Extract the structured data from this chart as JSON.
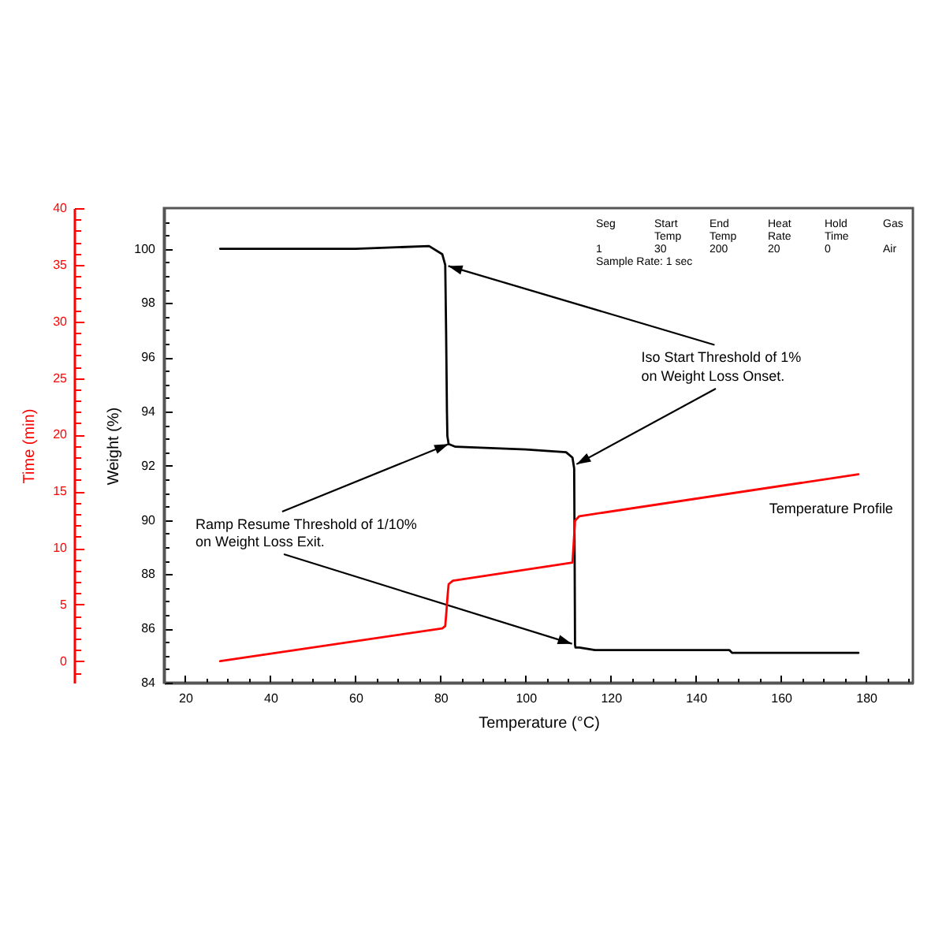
{
  "chart_data": {
    "type": "line",
    "xlabel": "Temperature (°C)",
    "ylabel": "Weight (%)",
    "y2label": "Time (min)",
    "series": [
      {
        "color": "#000000",
        "x": [
          28.2,
          60.0,
          77.3,
          80.4,
          81.1,
          81.3,
          81.5,
          81.6,
          81.9,
          83.5,
          100.0,
          109.5,
          111.0,
          111.4,
          111.5,
          111.6,
          111.7,
          112.6,
          116.3,
          147.9,
          148.5,
          178.2
        ],
        "values": [
          100.0,
          100.0,
          100.1,
          99.8,
          99.4,
          97.0,
          94.0,
          93.1,
          92.8,
          92.7,
          92.6,
          92.5,
          92.3,
          91.9,
          89.0,
          85.4,
          85.3,
          85.3,
          85.2,
          85.2,
          85.1,
          85.1
        ]
      },
      {
        "name": "Temperature Profile",
        "color": "#ff0000",
        "axis": "y2",
        "x": [
          28.2,
          80.4,
          81.1,
          81.4,
          81.7,
          81.9,
          82.9,
          111.0,
          111.3,
          111.6,
          112.6,
          178.2
        ],
        "values": [
          0.0,
          2.9,
          3.1,
          4.5,
          6.0,
          6.8,
          7.1,
          8.7,
          10.5,
          12.4,
          12.8,
          16.5
        ]
      }
    ],
    "xlim": [
      15,
      191
    ],
    "xticks": [
      20,
      {
        "value": 25,
        "label": null
      },
      {
        "value": 30,
        "label": null
      },
      {
        "value": 35,
        "label": null
      },
      40,
      {
        "value": 45,
        "label": null
      },
      {
        "value": 50,
        "label": null
      },
      {
        "value": 55,
        "label": null
      },
      60,
      {
        "value": 65,
        "label": null
      },
      {
        "value": 70,
        "label": null
      },
      {
        "value": 75,
        "label": null
      },
      80,
      {
        "value": 85,
        "label": null
      },
      {
        "value": 90,
        "label": null
      },
      {
        "value": 95,
        "label": null
      },
      100,
      {
        "value": 105,
        "label": null
      },
      {
        "value": 110,
        "label": null
      },
      {
        "value": 115,
        "label": null
      },
      120,
      {
        "value": 125,
        "label": null
      },
      {
        "value": 130,
        "label": null
      },
      {
        "value": 135,
        "label": null
      },
      140,
      {
        "value": 145,
        "label": null
      },
      {
        "value": 150,
        "label": null
      },
      {
        "value": 155,
        "label": null
      },
      160,
      {
        "value": 165,
        "label": null
      },
      {
        "value": 170,
        "label": null
      },
      {
        "value": 175,
        "label": null
      },
      180,
      {
        "value": 185,
        "label": null
      },
      {
        "value": 190,
        "label": null
      }
    ],
    "ylim": [
      84,
      101.5
    ],
    "yticks": [
      84,
      {
        "value": 84.5,
        "label": null
      },
      {
        "value": 85,
        "label": null
      },
      {
        "value": 85.5,
        "label": null
      },
      86,
      {
        "value": 86.5,
        "label": null
      },
      {
        "value": 87,
        "label": null
      },
      {
        "value": 87.5,
        "label": null
      },
      88,
      {
        "value": 88.5,
        "label": null
      },
      {
        "value": 89,
        "label": null
      },
      {
        "value": 89.5,
        "label": null
      },
      90,
      {
        "value": 90.5,
        "label": null
      },
      {
        "value": 91,
        "label": null
      },
      {
        "value": 91.5,
        "label": null
      },
      92,
      {
        "value": 92.5,
        "label": null
      },
      {
        "value": 93,
        "label": null
      },
      {
        "value": 93.5,
        "label": null
      },
      94,
      {
        "value": 94.5,
        "label": null
      },
      {
        "value": 95,
        "label": null
      },
      {
        "value": 95.5,
        "label": null
      },
      96,
      {
        "value": 96.5,
        "label": null
      },
      {
        "value": 97,
        "label": null
      },
      {
        "value": 97.5,
        "label": null
      },
      98,
      {
        "value": 98.5,
        "label": null
      },
      {
        "value": 99,
        "label": null
      },
      {
        "value": 99.5,
        "label": null
      },
      100,
      {
        "value": 100.5,
        "label": null
      },
      {
        "value": 101,
        "label": null
      }
    ],
    "y2lim": [
      -1.9,
      40
    ],
    "y2ticks": [
      {
        "value": -1,
        "label": null
      },
      0,
      {
        "value": 1,
        "label": null
      },
      {
        "value": 2,
        "label": null
      },
      {
        "value": 3,
        "label": null
      },
      {
        "value": 4,
        "label": null
      },
      5,
      {
        "value": 6,
        "label": null
      },
      {
        "value": 7,
        "label": null
      },
      {
        "value": 8,
        "label": null
      },
      {
        "value": 9,
        "label": null
      },
      10,
      {
        "value": 11,
        "label": null
      },
      {
        "value": 12,
        "label": null
      },
      {
        "value": 13,
        "label": null
      },
      {
        "value": 14,
        "label": null
      },
      15,
      {
        "value": 16,
        "label": null
      },
      {
        "value": 17,
        "label": null
      },
      {
        "value": 18,
        "label": null
      },
      {
        "value": 19,
        "label": null
      },
      20,
      {
        "value": 21,
        "label": null
      },
      {
        "value": 22,
        "label": null
      },
      {
        "value": 23,
        "label": null
      },
      {
        "value": 24,
        "label": null
      },
      25,
      {
        "value": 26,
        "label": null
      },
      {
        "value": 27,
        "label": null
      },
      {
        "value": 28,
        "label": null
      },
      {
        "value": 29,
        "label": null
      },
      30,
      {
        "value": 31,
        "label": null
      },
      {
        "value": 32,
        "label": null
      },
      {
        "value": 33,
        "label": null
      },
      {
        "value": 34,
        "label": null
      },
      35,
      {
        "value": 36,
        "label": null
      },
      {
        "value": 37,
        "label": null
      },
      {
        "value": 38,
        "label": null
      },
      {
        "value": 39,
        "label": null
      },
      40
    ],
    "annotations": [
      "Seg",
      "Start\nTemp",
      "End\nTemp",
      "Heat\nRate",
      "Hold\nTime",
      "Gas",
      "1",
      "30",
      "200",
      "20",
      "0",
      "Air",
      "Sample Rate: 1 sec",
      {
        "text": "Iso Start Threshold of 1%",
        "x": 81.1,
        "y": 99.4
      },
      {
        "text": "on Weight Loss Onset.",
        "x": 111.3,
        "y": 92.0
      },
      {
        "text": "Ramp Resume Threshold of 1/10%",
        "x": 81.9,
        "y": 92.8
      },
      {
        "text": "on Weight Loss Exit.",
        "x": 111.6,
        "y": 85.4
      }
    ],
    "grid": false
  }
}
